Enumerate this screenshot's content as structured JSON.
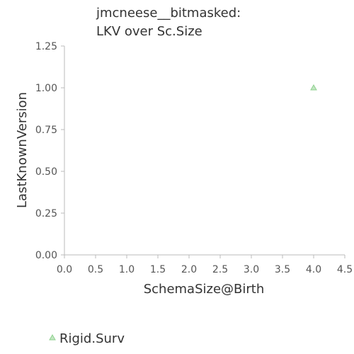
{
  "chart_data": {
    "type": "scatter",
    "title": [
      "jmcneese__bitmasked:",
      "LKV over Sc.Size"
    ],
    "xlabel": "SchemaSize@Birth",
    "ylabel": "LastKnownVersion",
    "xlim": [
      0,
      4.5
    ],
    "ylim": [
      0,
      1.25
    ],
    "xticks": [
      "0.0",
      "0.5",
      "1.0",
      "1.5",
      "2.0",
      "2.5",
      "3.0",
      "3.5",
      "4.0",
      "4.5"
    ],
    "yticks": [
      "0.00",
      "0.25",
      "0.50",
      "0.75",
      "1.00",
      "1.25"
    ],
    "grid": false,
    "legend_position": "bottom-left",
    "series": [
      {
        "name": "Rigid.Surv",
        "marker": "triangle",
        "color": "#8fd18f",
        "points": [
          {
            "x": 4.0,
            "y": 1.0
          }
        ]
      }
    ]
  }
}
